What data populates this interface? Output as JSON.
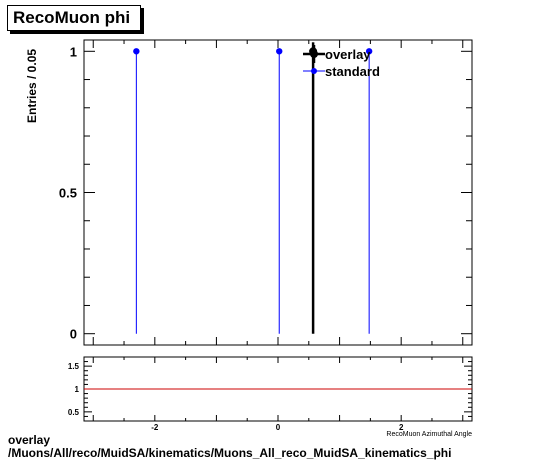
{
  "caption": {
    "title": "RecoMuon phi",
    "path_line1": "overlay",
    "path_line2": "/Muons/All/reco/MuidSA/kinematics/Muons_All_reco_MuidSA_kinematics_phi"
  },
  "chart_data": [
    {
      "type": "scatter",
      "title": "RecoMuon phi",
      "ylabel": "Entries / 0.05",
      "xlabel": "RecoMuon Azimuthal Angle",
      "xlim": [
        -3.15,
        3.15
      ],
      "ylim": [
        -0.04,
        1.04
      ],
      "y_ticks": [
        0,
        0.5,
        1
      ],
      "y_tick_labels": [
        "0",
        "0.5",
        "1"
      ],
      "legend_position": "top-right",
      "series": [
        {
          "name": "overlay",
          "color": "#000000",
          "x": [
            0.57
          ],
          "y": [
            1
          ]
        },
        {
          "name": "standard",
          "color": "#0000ff",
          "x": [
            -2.3,
            0.02,
            1.48
          ],
          "y": [
            1,
            1,
            1
          ]
        }
      ]
    },
    {
      "type": "line",
      "xlim": [
        -3.15,
        3.15
      ],
      "ylim": [
        0.3,
        1.7
      ],
      "x_ticks": [
        -2,
        0,
        2
      ],
      "x_tick_labels": [
        "-2",
        "0",
        "2"
      ],
      "y_ticks": [
        0.5,
        1,
        1.5
      ],
      "y_tick_labels": [
        "0.5",
        "1",
        "1.5"
      ],
      "xlabel": "RecoMuon Azimuthal Angle",
      "reference_line": {
        "y": 1,
        "color": "#cc0000"
      }
    }
  ]
}
